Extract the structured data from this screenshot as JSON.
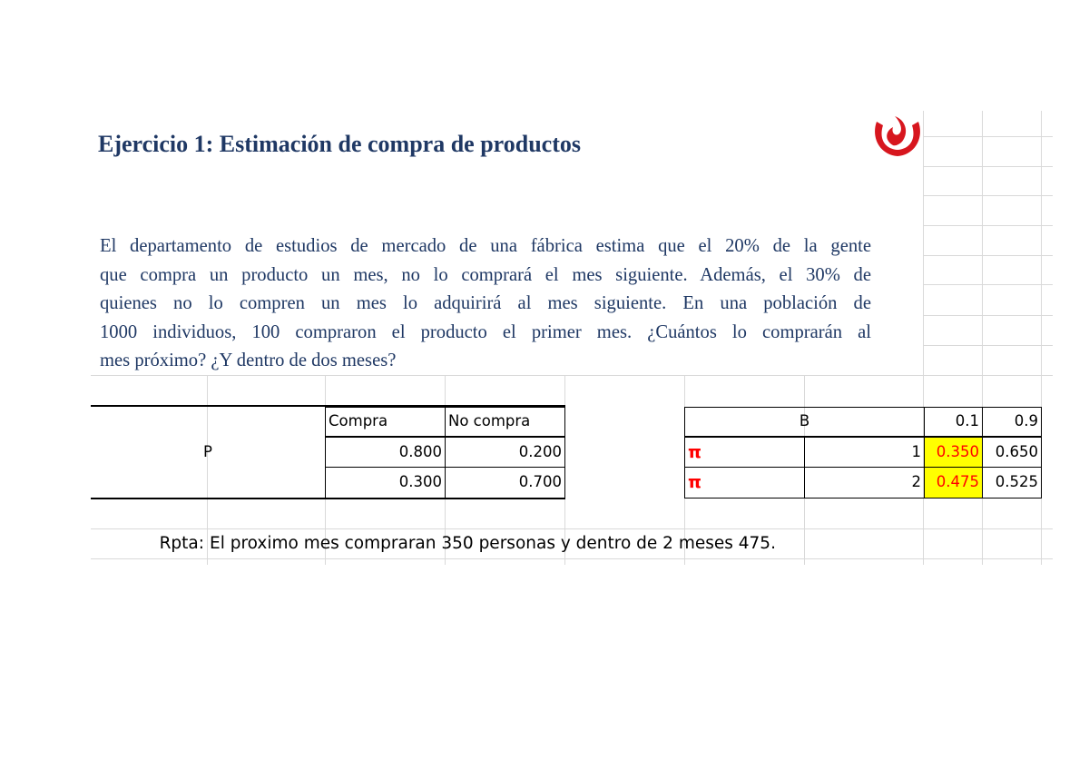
{
  "exercise": {
    "title": "Ejercicio 1: Estimación de compra de productos",
    "paragraph_lines": [
      "El departamento de estudios de mercado de una fábrica estima que el 20% de la gente",
      "que compra un producto un mes, no lo comprará el mes siguiente. Además, el 30% de",
      "quienes no lo compren un mes lo adquirirá al mes siguiente. En una población de",
      "1000 individuos, 100 compraron el producto el primer mes. ¿Cuántos lo comprarán al",
      "mes próximo? ¿Y dentro de dos meses?"
    ]
  },
  "brand": {
    "logo_icon": "upc-flame-logo-icon",
    "color": "#d7161e"
  },
  "matrix_p": {
    "label": "P",
    "col_headers": [
      "Compra",
      "No compra"
    ],
    "rows": [
      [
        "0.800",
        "0.200"
      ],
      [
        "0.300",
        "0.700"
      ]
    ]
  },
  "matrix_b": {
    "label": "B",
    "initial": [
      "0.1",
      "0.9"
    ],
    "pi_symbol": "π",
    "rows": [
      {
        "n": "1",
        "values": [
          "0.350",
          "0.650"
        ]
      },
      {
        "n": "2",
        "values": [
          "0.475",
          "0.525"
        ]
      }
    ],
    "highlight_color": "#ffff00",
    "highlight_text_color": "#ff0000"
  },
  "answer": {
    "label": "Rpta:",
    "text": "El proximo mes compraran 350 personas y dentro de 2 meses 475."
  }
}
